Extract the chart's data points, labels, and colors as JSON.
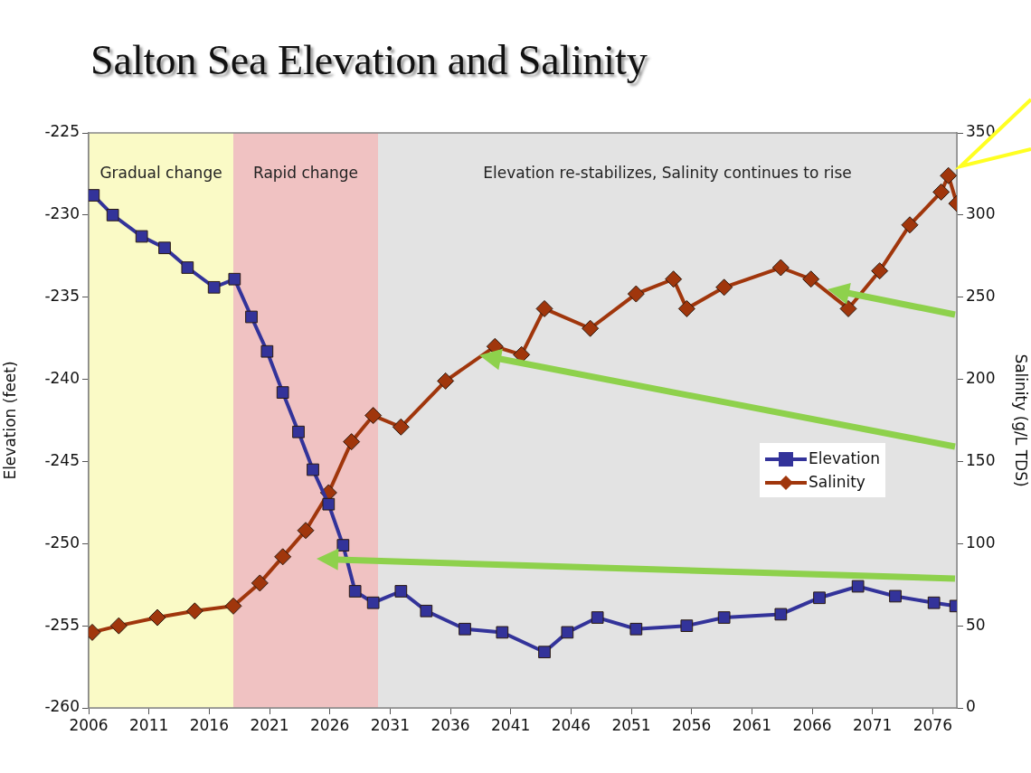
{
  "chart_data": {
    "type": "line",
    "title": "Salton Sea Elevation and Salinity",
    "ylabel": "Elevation (feet)",
    "y2label": "Salinity (g/L TDS)",
    "xlim": [
      2006,
      2078
    ],
    "xticks": [
      2006,
      2011,
      2016,
      2021,
      2026,
      2031,
      2036,
      2041,
      2046,
      2051,
      2056,
      2061,
      2066,
      2071,
      2076
    ],
    "ylim": [
      -260,
      -225
    ],
    "yticks": [
      -260,
      -255,
      -250,
      -245,
      -240,
      -235,
      -230,
      -225
    ],
    "y2lim": [
      0,
      350
    ],
    "y2ticks": [
      0,
      50,
      100,
      150,
      200,
      250,
      300,
      350
    ],
    "grid": false,
    "legend": "right",
    "bands": [
      {
        "axis": "x",
        "from": 2006,
        "to": 2018,
        "label": "Gradual change",
        "color": "#fafac6"
      },
      {
        "axis": "x",
        "from": 2018,
        "to": 2030,
        "label": "Rapid change",
        "color": "#f0c2c2"
      },
      {
        "axis": "x",
        "from": 2030,
        "to": 2078,
        "label": "Elevation re-stabilizes, Salinity continues to rise",
        "color": "#e3e3e3"
      }
    ],
    "series": [
      {
        "name": "Elevation",
        "color": "#33339a",
        "marker": "square",
        "axis": "y",
        "x": [
          2006.4,
          2008,
          2010.4,
          2012.3,
          2014.2,
          2016.4,
          2018.1,
          2019.5,
          2020.8,
          2022.1,
          2023.4,
          2024.6,
          2025.9,
          2027.1,
          2028.1,
          2029.6,
          2031.9,
          2034,
          2037.2,
          2040.3,
          2043.8,
          2045.7,
          2048.2,
          2051.4,
          2055.6,
          2058.7,
          2063.4,
          2066.6,
          2069.8,
          2072.9,
          2076.1,
          2077.9
        ],
        "values": [
          -228.8,
          -230,
          -231.3,
          -232,
          -233.2,
          -234.4,
          -233.9,
          -236.2,
          -238.3,
          -240.8,
          -243.2,
          -245.5,
          -247.6,
          -250.1,
          -252.9,
          -253.6,
          -252.9,
          -254.1,
          -255.2,
          -255.4,
          -256.6,
          -255.4,
          -254.5,
          -255.2,
          -255,
          -254.5,
          -254.3,
          -253.3,
          -252.6,
          -253.2,
          -253.6,
          -253.8
        ]
      },
      {
        "name": "Salinity",
        "color": "#a0360c",
        "marker": "diamond",
        "axis": "y2",
        "x": [
          2006.3,
          2008.5,
          2011.7,
          2014.8,
          2018,
          2020.2,
          2022.1,
          2024,
          2025.9,
          2027.8,
          2029.6,
          2031.9,
          2035.6,
          2039.7,
          2041.9,
          2043.8,
          2047.6,
          2051.4,
          2054.5,
          2055.6,
          2058.7,
          2063.4,
          2065.9,
          2069,
          2071.6,
          2074.1,
          2076.7,
          2077.3,
          2078
        ],
        "values": [
          46,
          50,
          55,
          59,
          62,
          76,
          92,
          108,
          131,
          162,
          178,
          171,
          199,
          220,
          215,
          243,
          231,
          252,
          261,
          243,
          256,
          268,
          261,
          243,
          266,
          294,
          314,
          324,
          307
        ]
      }
    ]
  }
}
